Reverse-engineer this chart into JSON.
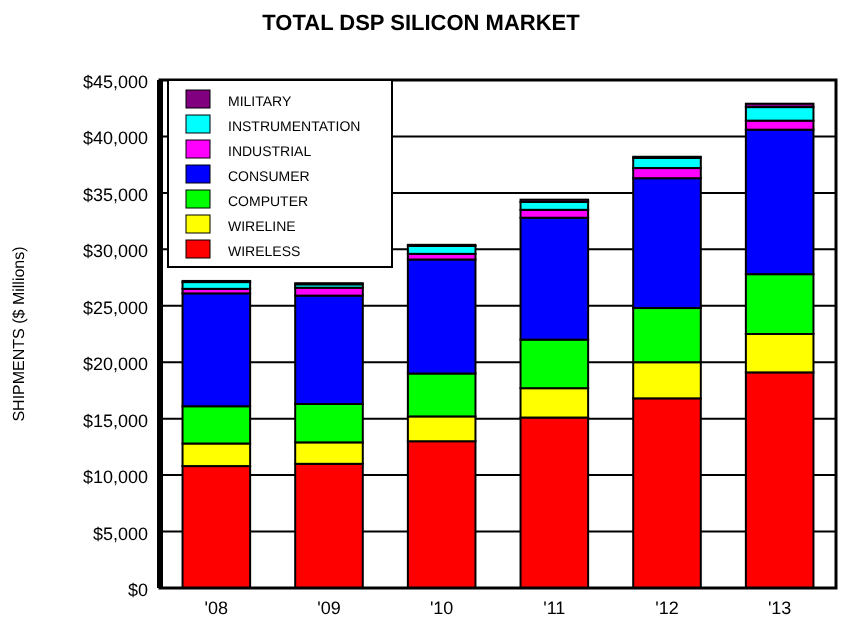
{
  "chart_data": {
    "type": "bar",
    "title": "TOTAL DSP SILICON MARKET",
    "ylabel": "SHIPMENTS ($ Millions)",
    "categories": [
      "'08",
      "'09",
      "'10",
      "'11",
      "'12",
      "'13"
    ],
    "stacked": true,
    "series": [
      {
        "name": "WIRELESS",
        "color": "#ff0000",
        "values": [
          10800,
          11000,
          13000,
          15100,
          16800,
          19100
        ]
      },
      {
        "name": "WIRELINE",
        "color": "#ffff00",
        "values": [
          2000,
          1900,
          2200,
          2600,
          3200,
          3400
        ]
      },
      {
        "name": "COMPUTER",
        "color": "#00ff00",
        "values": [
          3300,
          3400,
          3800,
          4300,
          4800,
          5300
        ]
      },
      {
        "name": "CONSUMER",
        "color": "#0000ff",
        "values": [
          10000,
          9600,
          10100,
          10800,
          11500,
          12800
        ]
      },
      {
        "name": "INDUSTRIAL",
        "color": "#ff00ff",
        "values": [
          400,
          700,
          500,
          700,
          900,
          800
        ]
      },
      {
        "name": "INSTRUMENTATION",
        "color": "#00ffff",
        "values": [
          600,
          300,
          700,
          700,
          900,
          1200
        ]
      },
      {
        "name": "MILITARY",
        "color": "#800080",
        "values": [
          100,
          100,
          100,
          200,
          100,
          300
        ]
      }
    ],
    "ylim": [
      0,
      45000
    ],
    "yticks": [
      {
        "value": 0,
        "label": "$0"
      },
      {
        "value": 5000,
        "label": "$5,000"
      },
      {
        "value": 10000,
        "label": "$10,000"
      },
      {
        "value": 15000,
        "label": "$15,000"
      },
      {
        "value": 20000,
        "label": "$20,000"
      },
      {
        "value": 25000,
        "label": "$25,000"
      },
      {
        "value": 30000,
        "label": "$30,000"
      },
      {
        "value": 35000,
        "label": "$35,000"
      },
      {
        "value": 40000,
        "label": "$40,000"
      },
      {
        "value": 45000,
        "label": "$45,000"
      }
    ],
    "grid": "y",
    "legend": "top left"
  }
}
